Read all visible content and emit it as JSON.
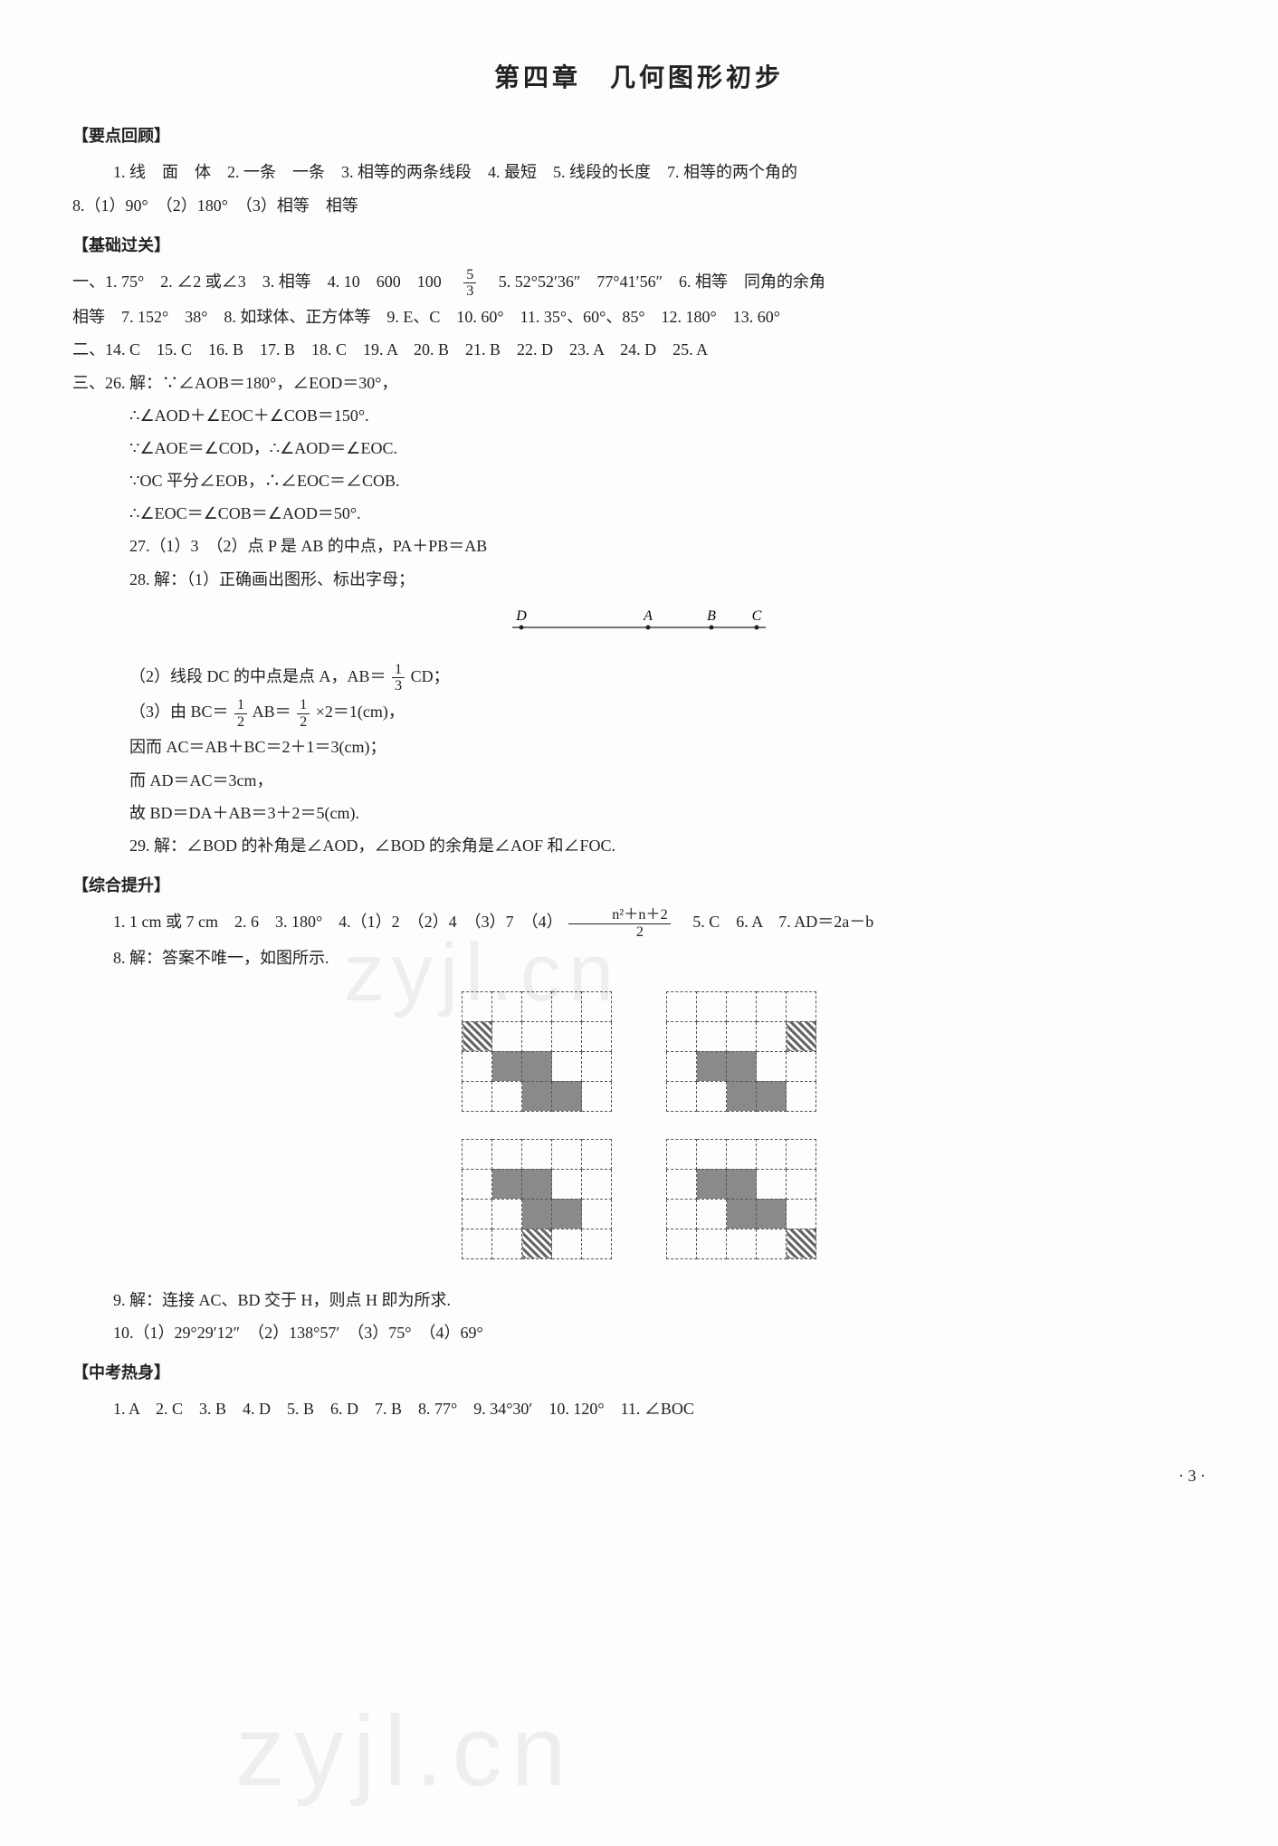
{
  "title": "第四章　几何图形初步",
  "sections": {
    "s1": {
      "hdr": "【要点回顾】",
      "p1": "1. 线　面　体　2. 一条　一条　3. 相等的两条线段　4. 最短　5. 线段的长度　7. 相等的两个角的",
      "p2": "8.（1）90°　（2）180°　（3）相等　相等"
    },
    "s2": {
      "hdr": "【基础过关】",
      "l1a": "一、1. 75°　2. ∠2 或∠3　3. 相等　4. 10　600　100　",
      "l1b": "　5. 52°52′36″　77°41′56″　6. 相等　同角的余角",
      "frac1": {
        "num": "5",
        "den": "3"
      },
      "l2": "相等　7. 152°　38°　8. 如球体、正方体等　9. E、C　10. 60°　11. 35°、60°、85°　12. 180°　13. 60°",
      "l3": "二、14. C　15. C　16. B　17. B　18. C　19. A　20. B　21. B　22. D　23. A　24. D　25. A",
      "l4": "三、26. 解：∵∠AOB＝180°，∠EOD＝30°，",
      "l5": "∴∠AOD＋∠EOC＋∠COB＝150°.",
      "l6": "∵∠AOE＝∠COD，∴∠AOD＝∠EOC.",
      "l7": "∵OC 平分∠EOB，∴∠EOC＝∠COB.",
      "l8": "∴∠EOC＝∠COB＝∠AOD＝50°.",
      "l9": "27.（1）3　（2）点 P 是 AB 的中点，PA＋PB＝AB",
      "l10": "28. 解：（1）正确画出图形、标出字母；",
      "diagram_pts": [
        "D",
        "A",
        "B",
        "C"
      ],
      "l11a": "（2）线段 DC 的中点是点 A，AB＝",
      "l11b": "CD；",
      "frac2": {
        "num": "1",
        "den": "3"
      },
      "l12a": "（3）由 BC＝",
      "l12b": "AB＝",
      "l12c": "×2＝1(cm)，",
      "frac3": {
        "num": "1",
        "den": "2"
      },
      "frac4": {
        "num": "1",
        "den": "2"
      },
      "l13": "因而 AC＝AB＋BC＝2＋1＝3(cm)；",
      "l14": "而 AD＝AC＝3cm，",
      "l15": "故 BD＝DA＋AB＝3＋2＝5(cm).",
      "l16": "29. 解：∠BOD 的补角是∠AOD，∠BOD 的余角是∠AOF 和∠FOC."
    },
    "s3": {
      "hdr": "【综合提升】",
      "l1a": "1. 1 cm 或 7 cm　2. 6　3. 180°　4.（1）2　（2）4　（3）7　（4）",
      "l1b": "　5. C　6. A　7. AD＝2a－b",
      "frac5num": "n²＋n＋2",
      "frac5den": "2",
      "l2": "8. 解：答案不唯一，如图所示.",
      "l3": "9. 解：连接 AC、BD 交于 H，则点 H 即为所求.",
      "l4": "10.（1）29°29′12″　（2）138°57′　（3）75°　（4）69°"
    },
    "s4": {
      "hdr": "【中考热身】",
      "l1": "1. A　2. C　3. B　4. D　5. B　6. D　7. B　8. 77°　9. 34°30′　10. 120°　11. ∠BOC"
    }
  },
  "grids": {
    "g1": [
      [
        0,
        0,
        0,
        0,
        0
      ],
      [
        2,
        0,
        0,
        0,
        0
      ],
      [
        0,
        1,
        1,
        0,
        0
      ],
      [
        0,
        0,
        1,
        1,
        0
      ]
    ],
    "g2": [
      [
        0,
        0,
        0,
        0,
        0
      ],
      [
        0,
        0,
        0,
        0,
        2
      ],
      [
        0,
        1,
        1,
        0,
        0
      ],
      [
        0,
        0,
        1,
        1,
        0
      ]
    ],
    "g3": [
      [
        0,
        0,
        0,
        0,
        0
      ],
      [
        0,
        1,
        1,
        0,
        0
      ],
      [
        0,
        0,
        1,
        1,
        0
      ],
      [
        0,
        0,
        2,
        0,
        0
      ]
    ],
    "g4": [
      [
        0,
        0,
        0,
        0,
        0
      ],
      [
        0,
        1,
        1,
        0,
        0
      ],
      [
        0,
        0,
        1,
        1,
        0
      ],
      [
        0,
        0,
        0,
        0,
        2
      ]
    ]
  },
  "pagenum": "· 3 ·",
  "wm": "zyjl.cn"
}
